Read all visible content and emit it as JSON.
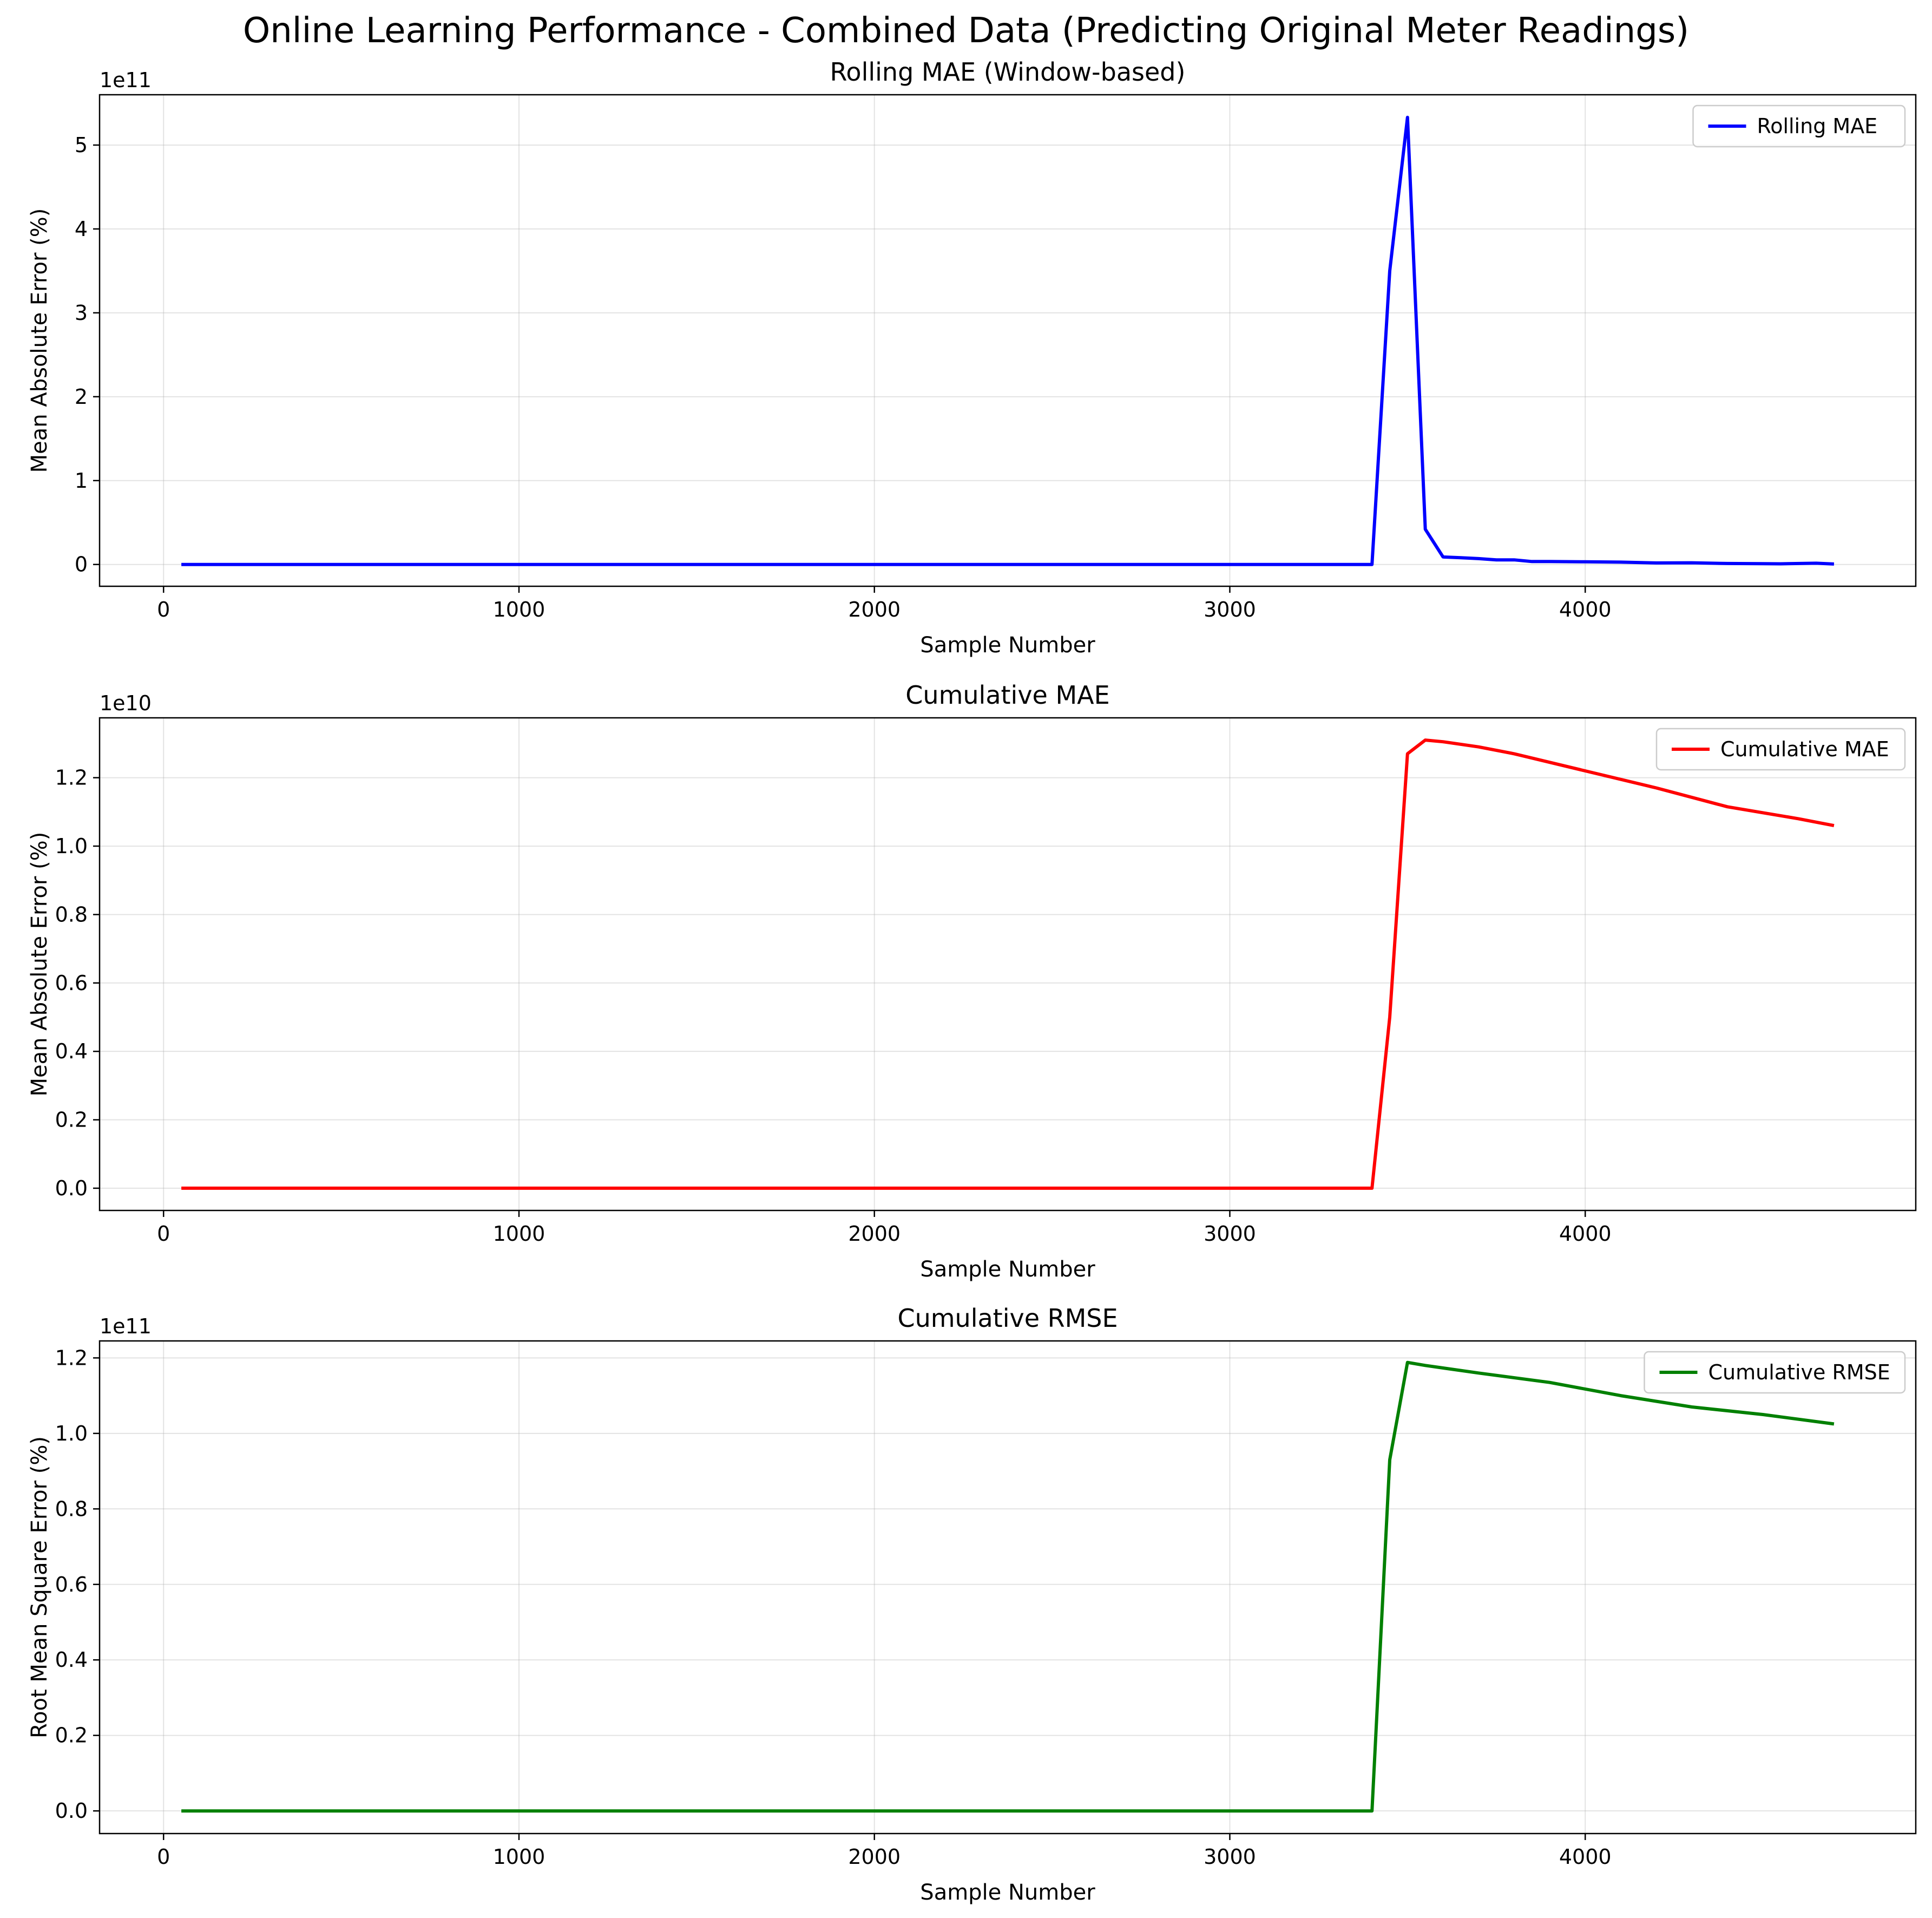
{
  "figure": {
    "title": "Online Learning Performance - Combined Data (Predicting Original Meter Readings)"
  },
  "chart_data": [
    {
      "type": "line",
      "title": "Rolling MAE (Window-based)",
      "xlabel": "Sample Number",
      "ylabel": "Mean Absolute Error (%)",
      "offset_label": "1e11",
      "xlim": [
        -180,
        4930
      ],
      "ylim": [
        -26000000000.0,
        560000000000.0
      ],
      "xticks": [
        0,
        1000,
        2000,
        3000,
        4000
      ],
      "yticks": [
        0,
        100000000000.0,
        200000000000.0,
        300000000000.0,
        400000000000.0,
        500000000000.0
      ],
      "ytick_labels": [
        "0",
        "1",
        "2",
        "3",
        "4",
        "5"
      ],
      "grid": true,
      "legend_position": "upper-right",
      "series": [
        {
          "name": "Rolling MAE",
          "color": "#0000ff",
          "x": [
            50,
            500,
            1000,
            1500,
            2000,
            2500,
            3000,
            3400,
            3450,
            3500,
            3550,
            3600,
            3650,
            3700,
            3750,
            3800,
            3850,
            3900,
            4000,
            4100,
            4200,
            4300,
            4400,
            4500,
            4550,
            4650,
            4700
          ],
          "y": [
            0,
            0,
            0,
            0,
            0,
            0,
            0,
            0,
            350000000000.0,
            533000000000.0,
            42000000000.0,
            9000000000.0,
            8000000000.0,
            7000000000.0,
            5500000000.0,
            5500000000.0,
            3500000000.0,
            3500000000.0,
            3200000000.0,
            2800000000.0,
            1800000000.0,
            2000000000.0,
            1200000000.0,
            1000000000.0,
            800000000.0,
            1500000000.0,
            500000000.0
          ]
        }
      ]
    },
    {
      "type": "line",
      "title": "Cumulative MAE",
      "xlabel": "Sample Number",
      "ylabel": "Mean Absolute Error (%)",
      "offset_label": "1e10",
      "xlim": [
        -180,
        4930
      ],
      "ylim": [
        -650000000.0,
        13750000000.0
      ],
      "xticks": [
        0,
        1000,
        2000,
        3000,
        4000
      ],
      "yticks": [
        0,
        2000000000.0,
        4000000000.0,
        6000000000.0,
        8000000000.0,
        10000000000.0,
        12000000000.0
      ],
      "ytick_labels": [
        "0.0",
        "0.2",
        "0.4",
        "0.6",
        "0.8",
        "1.0",
        "1.2"
      ],
      "grid": true,
      "legend_position": "upper-right",
      "series": [
        {
          "name": "Cumulative MAE",
          "color": "#ff0000",
          "x": [
            50,
            500,
            1000,
            1500,
            2000,
            2500,
            3000,
            3400,
            3450,
            3500,
            3550,
            3600,
            3700,
            3800,
            4000,
            4200,
            4400,
            4600,
            4700
          ],
          "y": [
            0,
            0,
            0,
            0,
            0,
            0,
            0,
            0,
            5000000000.0,
            12700000000.0,
            13100000000.0,
            13050000000.0,
            12900000000.0,
            12700000000.0,
            12200000000.0,
            11700000000.0,
            11150000000.0,
            10800000000.0,
            10600000000.0
          ]
        }
      ]
    },
    {
      "type": "line",
      "title": "Cumulative RMSE",
      "xlabel": "Sample Number",
      "ylabel": "Root Mean Square Error (%)",
      "offset_label": "1e11",
      "xlim": [
        -180,
        4930
      ],
      "ylim": [
        -6000000000.0,
        124500000000.0
      ],
      "xticks": [
        0,
        1000,
        2000,
        3000,
        4000
      ],
      "yticks": [
        0,
        20000000000.0,
        40000000000.0,
        60000000000.0,
        80000000000.0,
        100000000000.0,
        120000000000.0
      ],
      "ytick_labels": [
        "0.0",
        "0.2",
        "0.4",
        "0.6",
        "0.8",
        "1.0",
        "1.2"
      ],
      "grid": true,
      "legend_position": "upper-right",
      "series": [
        {
          "name": "Cumulative RMSE",
          "color": "#008000",
          "x": [
            50,
            500,
            1000,
            1500,
            2000,
            2500,
            3000,
            3400,
            3450,
            3500,
            3550,
            3700,
            3900,
            4100,
            4300,
            4500,
            4700
          ],
          "y": [
            0,
            0,
            0,
            0,
            0,
            0,
            0,
            0,
            93000000000.0,
            118800000000.0,
            118000000000.0,
            116000000000.0,
            113500000000.0,
            110000000000.0,
            107000000000.0,
            105000000000.0,
            102500000000.0
          ]
        }
      ]
    }
  ]
}
